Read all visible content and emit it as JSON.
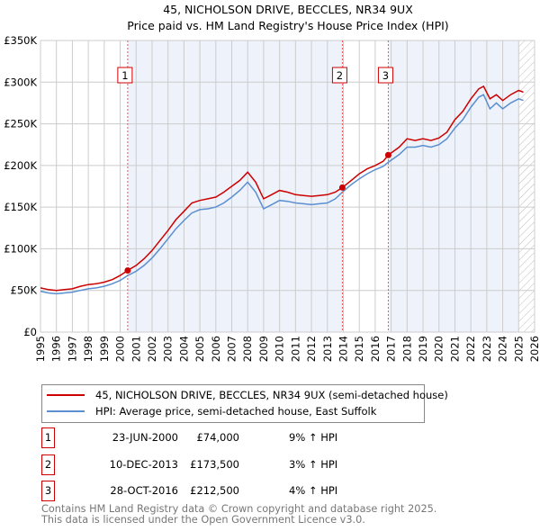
{
  "title": "45, NICHOLSON DRIVE, BECCLES, NR34 9UX",
  "subtitle": "Price paid vs. HM Land Registry's House Price Index (HPI)",
  "colors": {
    "property": "#cc0000",
    "hpi": "#5b8fd0",
    "shade": "#eef2fb"
  },
  "chart_data": {
    "type": "line",
    "title": "45, NICHOLSON DRIVE, BECCLES, NR34 9UX",
    "xlim": [
      1995,
      2026
    ],
    "ylim": [
      0,
      350000
    ],
    "yticks": [
      {
        "v": 0,
        "label": "£0"
      },
      {
        "v": 50000,
        "label": "£50K"
      },
      {
        "v": 100000,
        "label": "£100K"
      },
      {
        "v": 150000,
        "label": "£150K"
      },
      {
        "v": 200000,
        "label": "£200K"
      },
      {
        "v": 250000,
        "label": "£250K"
      },
      {
        "v": 300000,
        "label": "£300K"
      },
      {
        "v": 350000,
        "label": "£350K"
      }
    ],
    "xticks": [
      "1995",
      "1996",
      "1997",
      "1998",
      "1999",
      "2000",
      "2001",
      "2002",
      "2003",
      "2004",
      "2005",
      "2006",
      "2007",
      "2008",
      "2009",
      "2010",
      "2011",
      "2012",
      "2013",
      "2014",
      "2015",
      "2016",
      "2017",
      "2018",
      "2019",
      "2020",
      "2021",
      "2022",
      "2023",
      "2024",
      "2025",
      "2026"
    ],
    "series": [
      {
        "name": "45, NICHOLSON DRIVE, BECCLES, NR34 9UX (semi-detached house)",
        "x": [
          1995,
          1995.5,
          1996,
          1996.5,
          1997,
          1997.5,
          1998,
          1998.5,
          1999,
          1999.5,
          2000,
          2000.47,
          2001,
          2001.5,
          2002,
          2002.5,
          2003,
          2003.5,
          2004,
          2004.5,
          2005,
          2005.5,
          2006,
          2006.5,
          2007,
          2007.5,
          2008,
          2008.5,
          2009,
          2009.5,
          2010,
          2010.5,
          2011,
          2011.5,
          2012,
          2012.5,
          2013,
          2013.5,
          2013.94,
          2014.5,
          2015,
          2015.5,
          2016,
          2016.5,
          2016.82,
          2017.5,
          2018,
          2018.5,
          2019,
          2019.5,
          2020,
          2020.5,
          2021,
          2021.5,
          2022,
          2022.5,
          2022.8,
          2023.2,
          2023.6,
          2024,
          2024.5,
          2025,
          2025.3
        ],
        "y": [
          53000,
          51000,
          50000,
          51000,
          52000,
          55000,
          57000,
          58000,
          60000,
          63000,
          68000,
          74000,
          80000,
          88000,
          98000,
          110000,
          122000,
          135000,
          145000,
          155000,
          158000,
          160000,
          162000,
          168000,
          175000,
          182000,
          192000,
          180000,
          160000,
          165000,
          170000,
          168000,
          165000,
          164000,
          163000,
          164000,
          165000,
          168000,
          173500,
          182000,
          190000,
          196000,
          200000,
          205000,
          212500,
          222000,
          232000,
          230000,
          232000,
          230000,
          233000,
          240000,
          255000,
          265000,
          280000,
          292000,
          295000,
          280000,
          285000,
          278000,
          285000,
          290000,
          288000
        ]
      },
      {
        "name": "HPI: Average price, semi-detached house, East Suffolk",
        "x": [
          1995,
          1995.5,
          1996,
          1996.5,
          1997,
          1997.5,
          1998,
          1998.5,
          1999,
          1999.5,
          2000,
          2000.47,
          2001,
          2001.5,
          2002,
          2002.5,
          2003,
          2003.5,
          2004,
          2004.5,
          2005,
          2005.5,
          2006,
          2006.5,
          2007,
          2007.5,
          2008,
          2008.5,
          2009,
          2009.5,
          2010,
          2010.5,
          2011,
          2011.5,
          2012,
          2012.5,
          2013,
          2013.5,
          2013.94,
          2014.5,
          2015,
          2015.5,
          2016,
          2016.5,
          2016.82,
          2017.5,
          2018,
          2018.5,
          2019,
          2019.5,
          2020,
          2020.5,
          2021,
          2021.5,
          2022,
          2022.5,
          2022.8,
          2023.2,
          2023.6,
          2024,
          2024.5,
          2025,
          2025.3
        ],
        "y": [
          49000,
          47000,
          46000,
          47000,
          48000,
          50000,
          52000,
          53000,
          55000,
          58000,
          62000,
          68000,
          73000,
          80000,
          89000,
          100000,
          112000,
          124000,
          134000,
          143000,
          147000,
          148000,
          150000,
          155000,
          162000,
          170000,
          180000,
          168000,
          148000,
          153000,
          158000,
          157000,
          155000,
          154000,
          153000,
          154000,
          155000,
          160000,
          168000,
          177000,
          184000,
          190000,
          195000,
          199000,
          204000,
          213000,
          222000,
          222000,
          224000,
          222000,
          225000,
          232000,
          245000,
          255000,
          270000,
          282000,
          285000,
          268000,
          275000,
          268000,
          275000,
          280000,
          278000
        ]
      }
    ],
    "sales": [
      {
        "id": "1",
        "x": 2000.47,
        "price": 74000,
        "date": "23-JUN-2000",
        "price_label": "£74,000",
        "hpi": "9% ↑ HPI"
      },
      {
        "id": "2",
        "x": 2013.94,
        "price": 173500,
        "date": "10-DEC-2013",
        "price_label": "£173,500",
        "hpi": "3% ↑ HPI"
      },
      {
        "id": "3",
        "x": 2016.82,
        "price": 212500,
        "date": "28-OCT-2016",
        "price_label": "£212,500",
        "hpi": "4% ↑ HPI"
      }
    ],
    "data_end": 2025.0,
    "legend": "below"
  },
  "footer": {
    "line1": "Contains HM Land Registry data © Crown copyright and database right 2025.",
    "line2": "This data is licensed under the Open Government Licence v3.0."
  }
}
